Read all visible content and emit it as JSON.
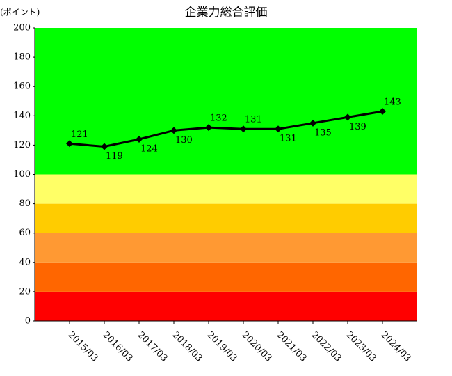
{
  "chart_data": {
    "type": "line",
    "title": "企業力総合評価",
    "y_unit_label": "(ポイント)",
    "categories": [
      "2015/03",
      "2016/03",
      "2017/03",
      "2018/03",
      "2019/03",
      "2020/03",
      "2021/03",
      "2022/03",
      "2023/03",
      "2024/03"
    ],
    "values": [
      121,
      119,
      124,
      130,
      132,
      131,
      131,
      135,
      139,
      143
    ],
    "color": "#000000",
    "ylim": [
      0,
      200
    ],
    "yticks": [
      0,
      20,
      40,
      60,
      80,
      100,
      120,
      140,
      160,
      180,
      200
    ],
    "bands": [
      {
        "from": 0,
        "to": 20,
        "color": "#ff0000"
      },
      {
        "from": 20,
        "to": 40,
        "color": "#ff6600"
      },
      {
        "from": 40,
        "to": 60,
        "color": "#ff9933"
      },
      {
        "from": 60,
        "to": 80,
        "color": "#ffcc00"
      },
      {
        "from": 80,
        "to": 100,
        "color": "#ffff66"
      },
      {
        "from": 100,
        "to": 200,
        "color": "#00ff00"
      }
    ]
  }
}
